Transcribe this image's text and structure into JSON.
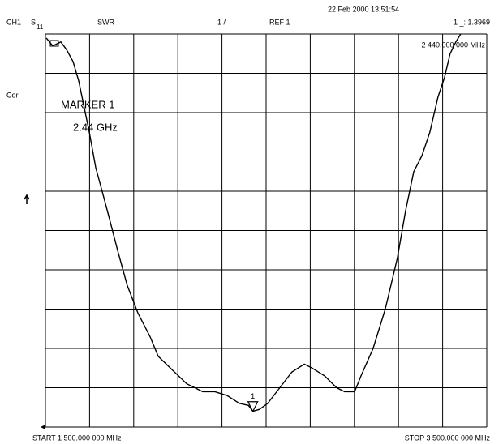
{
  "chart_data": {
    "type": "line",
    "date_time": "22 Feb 2000  13:51:54",
    "channel": "CH1",
    "param": "S",
    "param_sub": "11",
    "format": "SWR",
    "scale": "1 /",
    "ref": "REF 1",
    "marker_readout": "1 _: 1.3969",
    "marker_freq": "2 440.000 000 MHz",
    "cor": "Cor",
    "marker_title": "MARKER 1",
    "marker_note": "2.44 GHz",
    "start": "START 1 500.000 000 MHz",
    "stop": "STOP 3 500.000 000 MHz",
    "xlim": [
      1500,
      3500
    ],
    "ylim": [
      1,
      11
    ],
    "color": "#000000",
    "grid": true,
    "x": [
      1504,
      1533,
      1570,
      1596,
      1625,
      1651,
      1673,
      1699,
      1728,
      1757,
      1790,
      1827,
      1871,
      1919,
      1974,
      2011,
      2066,
      2140,
      2213,
      2268,
      2323,
      2379,
      2420,
      2440,
      2470,
      2507,
      2562,
      2617,
      2673,
      2709,
      2765,
      2820,
      2856,
      2901,
      2930,
      2985,
      3040,
      3095,
      3132,
      3169,
      3206,
      3242,
      3279,
      3309,
      3334,
      3360,
      3382
    ],
    "values": [
      10.9,
      10.7,
      10.8,
      10.6,
      10.3,
      9.8,
      9.2,
      8.5,
      7.6,
      7.0,
      6.3,
      5.5,
      4.6,
      3.9,
      3.3,
      2.8,
      2.5,
      2.1,
      1.9,
      1.9,
      1.8,
      1.6,
      1.55,
      1.4,
      1.45,
      1.6,
      2.0,
      2.4,
      2.6,
      2.5,
      2.3,
      2.0,
      1.9,
      1.9,
      2.3,
      3.0,
      4.0,
      5.3,
      6.5,
      7.5,
      7.9,
      8.5,
      9.4,
      9.9,
      10.5,
      10.8,
      11
    ],
    "marker": {
      "label": "1",
      "x": 2440,
      "y": 1.3969
    }
  }
}
